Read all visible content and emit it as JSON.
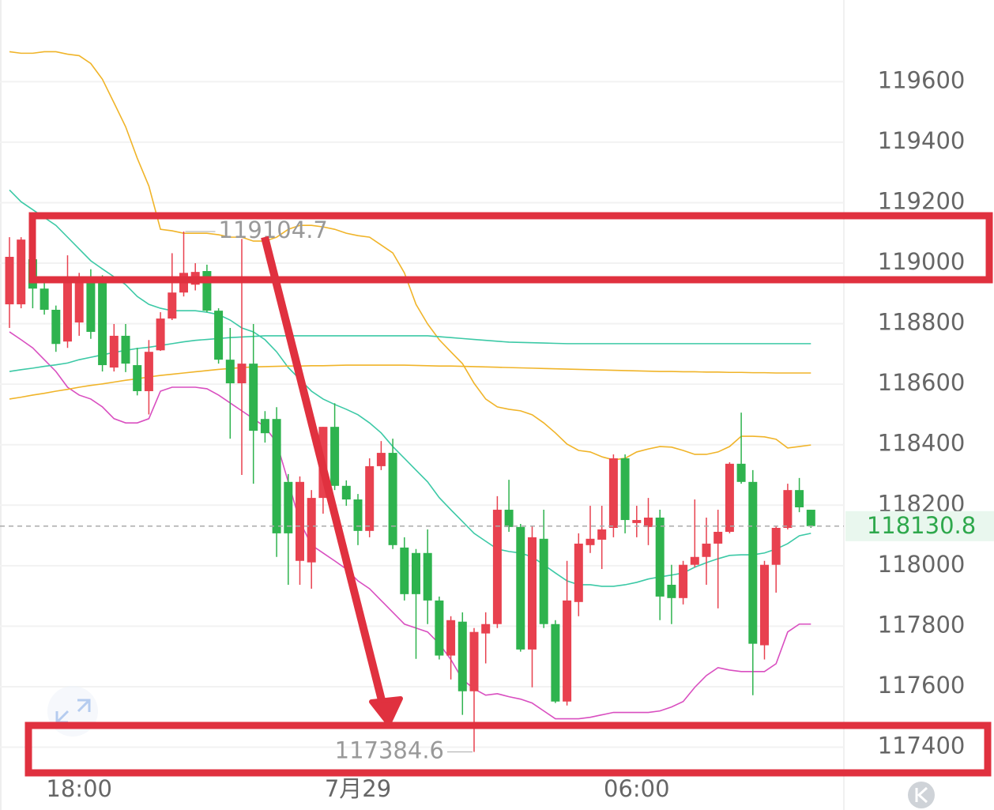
{
  "chart_data": {
    "type": "candlestick",
    "up_color": "#e8414f",
    "down_color": "#2eb34e",
    "grid": true,
    "ylim": [
      117310,
      119870
    ],
    "yticks": [
      117400,
      117600,
      117800,
      118000,
      118200,
      118400,
      118600,
      118800,
      119000,
      119200,
      119400,
      119600
    ],
    "categories": [
      null,
      null,
      null,
      null,
      null,
      null,
      "18:00",
      null,
      null,
      null,
      null,
      null,
      null,
      null,
      null,
      null,
      null,
      null,
      null,
      null,
      null,
      null,
      null,
      null,
      null,
      null,
      null,
      null,
      null,
      null,
      "7月29",
      null,
      null,
      null,
      null,
      null,
      null,
      null,
      null,
      null,
      null,
      null,
      null,
      null,
      null,
      null,
      null,
      null,
      null,
      null,
      null,
      null,
      null,
      null,
      "06:00",
      null,
      null,
      null,
      null,
      null,
      null,
      null,
      null,
      null,
      null,
      null,
      null,
      null,
      null,
      null
    ],
    "open": [
      118864,
      118864,
      119013,
      118916,
      118846,
      118741,
      118804,
      118955,
      118942,
      118655,
      118760,
      118663,
      118577,
      118712,
      118817,
      118903,
      118929,
      118974,
      118843,
      118681,
      118603,
      118668,
      118485,
      118485,
      118277,
      118016,
      118011,
      118224,
      118459,
      118264,
      118219,
      118115,
      118329,
      118373,
      118060,
      118042,
      118042,
      117885,
      117703,
      117815,
      117585,
      117776,
      117807,
      118185,
      118128,
      117723,
      118089,
      117807,
      117551,
      117880,
      118068,
      118086,
      118125,
      118355,
      118141,
      118128,
      118159,
      117937,
      117893,
      118003,
      118029,
      118073,
      118112,
      118337,
      118277,
      117737,
      118003,
      118125,
      118250,
      118185
    ],
    "high": [
      119086,
      119086,
      119030,
      118940,
      118860,
      119026,
      118968,
      118980,
      118960,
      118799,
      118799,
      118720,
      118746,
      118838,
      119033,
      119104.7,
      119000,
      118995,
      118851,
      118786,
      119080,
      118799,
      118511,
      118524,
      118303,
      118295,
      118250,
      118459,
      118537,
      118282,
      118237,
      118355,
      118412,
      118420,
      118094,
      118055,
      118120,
      117898,
      117833,
      117846,
      117794,
      117846,
      118230,
      118284,
      118138,
      118133,
      118185,
      117820,
      118016,
      118107,
      118198,
      118198,
      118368,
      118368,
      118198,
      118224,
      118185,
      118003,
      118016,
      118219,
      118159,
      118185,
      118342,
      118506,
      118316,
      118016,
      118133,
      118271,
      118290,
      118185
    ],
    "low": [
      118786,
      118851,
      118851,
      118830,
      118707,
      118720,
      118760,
      118750,
      118642,
      118642,
      118640,
      118563,
      118500,
      118710,
      118812,
      118890,
      118910,
      118838,
      118668,
      118420,
      118300,
      118271,
      118407,
      118029,
      117937,
      117937,
      117924,
      118172,
      118250,
      118198,
      118068,
      118094,
      118316,
      118055,
      117885,
      117692,
      117807,
      117690,
      117624,
      117507,
      117384.6,
      117677,
      117794,
      118112,
      117716,
      117598,
      117794,
      117546,
      117538,
      117833,
      118042,
      117989,
      118094,
      118107,
      118094,
      118068,
      117820,
      117807,
      117872,
      117995,
      117937,
      117859,
      118107,
      118271,
      117572,
      117690,
      117911,
      118120,
      118177,
      118125
    ],
    "close": [
      119021,
      119078,
      118916,
      118846,
      118733,
      118955,
      118942,
      118773,
      118663,
      118760,
      118668,
      118577,
      118707,
      118817,
      118903,
      118968,
      118971,
      118843,
      118681,
      118603,
      118668,
      118446,
      118438,
      118107,
      118107,
      118277,
      118224,
      118459,
      118264,
      118219,
      118115,
      118329,
      118373,
      118068,
      117906,
      117906,
      117885,
      117703,
      117820,
      117585,
      117781,
      117807,
      118185,
      118128,
      117723,
      118094,
      117807,
      117551,
      117885,
      118073,
      118089,
      118120,
      118355,
      118151,
      118151,
      118159,
      117898,
      117893,
      118003,
      118029,
      118073,
      118112,
      118337,
      118277,
      117742,
      118003,
      118125,
      118250,
      118193,
      118130.8
    ],
    "lines": [
      {
        "color": "#f0b429",
        "values": [
          119699,
          119694,
          119694,
          119699,
          119699,
          119691,
          119686,
          119660,
          119608,
          119530,
          119451,
          119347,
          119255,
          119112,
          119107,
          119099,
          119099,
          119099,
          119094,
          119086,
          119086,
          119073,
          119073,
          119086,
          119112,
          119125,
          119125,
          119120,
          119112,
          119099,
          119091,
          119086,
          119060,
          119034,
          118968,
          118864,
          118799,
          118747,
          118707,
          118668,
          118603,
          118551,
          118525,
          118517,
          118512,
          118499,
          118472,
          118439,
          118402,
          118381,
          118376,
          118360,
          118350,
          118355,
          118376,
          118386,
          118394,
          118392,
          118381,
          118368,
          118368,
          118376,
          118394,
          118428,
          118428,
          118426,
          118418,
          118389,
          118394,
          118399
        ]
      },
      {
        "color": "#3cc9a6",
        "values": [
          119242,
          119203,
          119177,
          119151,
          119125,
          119086,
          119047,
          119008,
          118981,
          118955,
          118929,
          118890,
          118864,
          118851,
          118843,
          118843,
          118843,
          118838,
          118830,
          118812,
          118786,
          118773,
          118747,
          118707,
          118655,
          118616,
          118577,
          118551,
          118533,
          118517,
          118499,
          118472,
          118439,
          118394,
          118355,
          118316,
          118277,
          118225,
          118185,
          118146,
          118107,
          118081,
          118055,
          118047,
          118042,
          118029,
          118003,
          117976,
          117950,
          117937,
          117937,
          117932,
          117932,
          117937,
          117945,
          117956,
          117963,
          117969,
          117976,
          117995,
          118010,
          118023,
          118034,
          118036,
          118036,
          118042,
          118055,
          118073,
          118099,
          118107
        ]
      },
      {
        "color": "#d94fc0",
        "values": [
          118773,
          118747,
          118720,
          118681,
          118642,
          118590,
          118564,
          118551,
          118525,
          118486,
          118472,
          118472,
          118486,
          118577,
          118590,
          118590,
          118590,
          118585,
          118564,
          118538,
          118512,
          118486,
          118459,
          118407,
          118277,
          118146,
          118068,
          118042,
          118016,
          117989,
          117950,
          117924,
          117885,
          117846,
          117807,
          117794,
          117781,
          117742,
          117690,
          117624,
          117593,
          117572,
          117577,
          117567,
          117559,
          117546,
          117520,
          117494,
          117494,
          117494,
          117499,
          117507,
          117515,
          117515,
          117515,
          117515,
          117520,
          117533,
          117551,
          117598,
          117637,
          117663,
          117655,
          117650,
          117650,
          117650,
          117676,
          117781,
          117807,
          117807
        ]
      },
      {
        "color": "#3cc9a6",
        "values": [
          118642,
          118648,
          118653,
          118659,
          118664,
          118670,
          118681,
          118689,
          118697,
          118705,
          118712,
          118718,
          118722,
          118728,
          118734,
          118740,
          118745,
          118748,
          118751,
          118754,
          118756,
          118758,
          118760,
          118760,
          118760,
          118760,
          118760,
          118760,
          118760,
          118760,
          118760,
          118760,
          118760,
          118760,
          118760,
          118760,
          118760,
          118757,
          118754,
          118751,
          118748,
          118745,
          118742,
          118739,
          118738,
          118737,
          118736,
          118735,
          118734,
          118734,
          118734,
          118734,
          118734,
          118734,
          118734,
          118734,
          118734,
          118734,
          118734,
          118734,
          118734,
          118734,
          118734,
          118734,
          118734,
          118734,
          118734,
          118734,
          118734,
          118734
        ]
      },
      {
        "color": "#f0b429",
        "values": [
          118551,
          118557,
          118564,
          118570,
          118577,
          118583,
          118590,
          118596,
          118601,
          118607,
          118613,
          118618,
          118624,
          118629,
          118633,
          118637,
          118641,
          118645,
          118649,
          118652,
          118655,
          118657,
          118658,
          118659,
          118660,
          118660,
          118661,
          118661,
          118662,
          118663,
          118663,
          118663,
          118663,
          118663,
          118663,
          118662,
          118661,
          118660,
          118660,
          118659,
          118658,
          118657,
          118656,
          118655,
          118654,
          118653,
          118652,
          118651,
          118650,
          118649,
          118648,
          118647,
          118646,
          118645,
          118644,
          118643,
          118642,
          118642,
          118641,
          118641,
          118640,
          118640,
          118639,
          118639,
          118638,
          118638,
          118637,
          118637,
          118637,
          118637
        ]
      }
    ],
    "last_price": 118130.8,
    "last_price_color": "#2ea84c"
  }
}
